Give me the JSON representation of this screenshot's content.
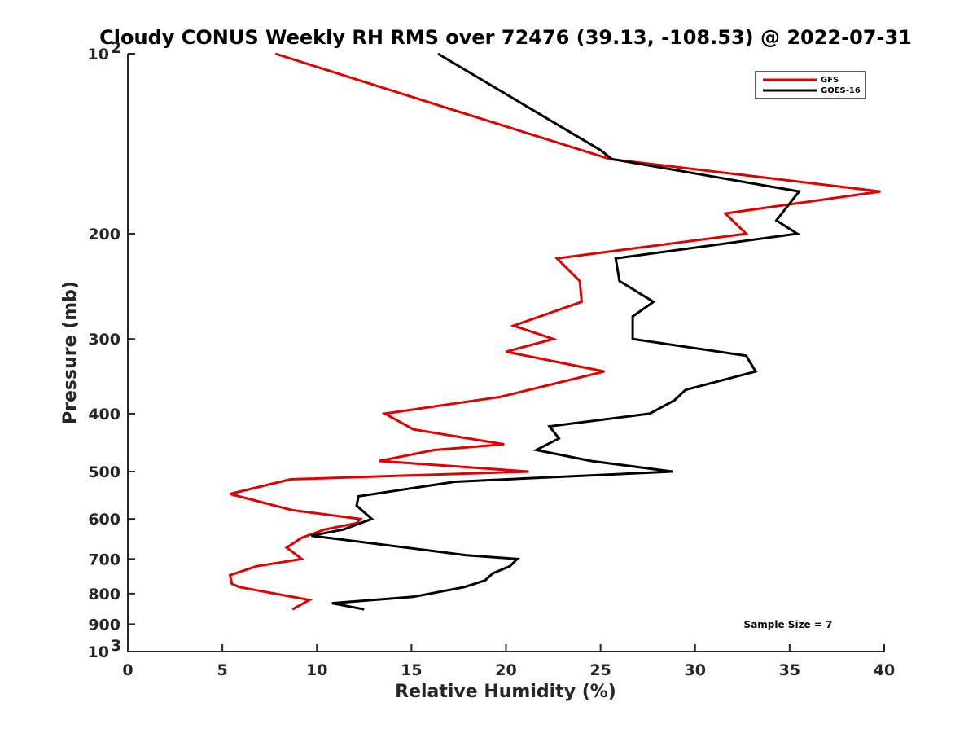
{
  "chart_data": {
    "type": "line",
    "title": "Cloudy CONUS Weekly RH RMS over 72476 (39.13, -108.53) @ 2022-07-31",
    "xlabel": "Relative Humidity (%)",
    "ylabel": "Pressure (mb)",
    "xlim": [
      0,
      40
    ],
    "ylim": [
      100,
      1000
    ],
    "y_scale": "log",
    "y_reversed": true,
    "x_ticks": [
      0,
      5,
      10,
      15,
      20,
      25,
      30,
      35,
      40
    ],
    "y_ticks": [
      {
        "value": 100,
        "label": "10",
        "sup": "2"
      },
      {
        "value": 200,
        "label": "200",
        "sup": ""
      },
      {
        "value": 300,
        "label": "300",
        "sup": ""
      },
      {
        "value": 400,
        "label": "400",
        "sup": ""
      },
      {
        "value": 500,
        "label": "500",
        "sup": ""
      },
      {
        "value": 600,
        "label": "600",
        "sup": ""
      },
      {
        "value": 700,
        "label": "700",
        "sup": ""
      },
      {
        "value": 800,
        "label": "800",
        "sup": ""
      },
      {
        "value": 900,
        "label": "900",
        "sup": ""
      },
      {
        "value": 1000,
        "label": "10",
        "sup": "3"
      }
    ],
    "grid": false,
    "legend_position": "top-right",
    "annotation": "Sample Size = 7",
    "series": [
      {
        "name": "GFS",
        "color": "#e50000",
        "points": [
          {
            "x": 7.8,
            "p": 100
          },
          {
            "x": 17.5,
            "p": 125
          },
          {
            "x": 25.5,
            "p": 150
          },
          {
            "x": 39.8,
            "p": 170
          },
          {
            "x": 31.6,
            "p": 185
          },
          {
            "x": 32.7,
            "p": 200
          },
          {
            "x": 22.7,
            "p": 220
          },
          {
            "x": 23.9,
            "p": 240
          },
          {
            "x": 24.0,
            "p": 260
          },
          {
            "x": 20.4,
            "p": 285
          },
          {
            "x": 22.5,
            "p": 300
          },
          {
            "x": 20.0,
            "p": 315
          },
          {
            "x": 25.2,
            "p": 340
          },
          {
            "x": 19.7,
            "p": 375
          },
          {
            "x": 13.6,
            "p": 400
          },
          {
            "x": 15.1,
            "p": 425
          },
          {
            "x": 19.9,
            "p": 450
          },
          {
            "x": 16.2,
            "p": 460
          },
          {
            "x": 13.3,
            "p": 480
          },
          {
            "x": 21.2,
            "p": 500
          },
          {
            "x": 8.6,
            "p": 515
          },
          {
            "x": 5.4,
            "p": 545
          },
          {
            "x": 8.7,
            "p": 580
          },
          {
            "x": 12.3,
            "p": 600
          },
          {
            "x": 12.1,
            "p": 610
          },
          {
            "x": 10.4,
            "p": 625
          },
          {
            "x": 9.2,
            "p": 645
          },
          {
            "x": 8.4,
            "p": 670
          },
          {
            "x": 9.2,
            "p": 700
          },
          {
            "x": 6.8,
            "p": 720
          },
          {
            "x": 5.4,
            "p": 745
          },
          {
            "x": 5.5,
            "p": 770
          },
          {
            "x": 5.9,
            "p": 780
          },
          {
            "x": 9.6,
            "p": 820
          },
          {
            "x": 8.7,
            "p": 850
          }
        ]
      },
      {
        "name": "GOES-16",
        "color": "#000000",
        "points": [
          {
            "x": 16.4,
            "p": 100
          },
          {
            "x": 25.0,
            "p": 145
          },
          {
            "x": 25.6,
            "p": 150
          },
          {
            "x": 35.5,
            "p": 170
          },
          {
            "x": 34.3,
            "p": 190
          },
          {
            "x": 35.4,
            "p": 200
          },
          {
            "x": 25.8,
            "p": 220
          },
          {
            "x": 26.0,
            "p": 240
          },
          {
            "x": 27.8,
            "p": 260
          },
          {
            "x": 26.7,
            "p": 275
          },
          {
            "x": 26.7,
            "p": 300
          },
          {
            "x": 32.7,
            "p": 320
          },
          {
            "x": 33.2,
            "p": 340
          },
          {
            "x": 29.5,
            "p": 365
          },
          {
            "x": 28.9,
            "p": 380
          },
          {
            "x": 27.6,
            "p": 400
          },
          {
            "x": 22.3,
            "p": 420
          },
          {
            "x": 22.8,
            "p": 440
          },
          {
            "x": 21.6,
            "p": 460
          },
          {
            "x": 24.5,
            "p": 480
          },
          {
            "x": 28.8,
            "p": 500
          },
          {
            "x": 17.3,
            "p": 520
          },
          {
            "x": 12.2,
            "p": 550
          },
          {
            "x": 12.1,
            "p": 570
          },
          {
            "x": 12.9,
            "p": 600
          },
          {
            "x": 11.4,
            "p": 625
          },
          {
            "x": 9.7,
            "p": 640
          },
          {
            "x": 17.9,
            "p": 690
          },
          {
            "x": 20.6,
            "p": 700
          },
          {
            "x": 20.2,
            "p": 720
          },
          {
            "x": 19.3,
            "p": 740
          },
          {
            "x": 18.9,
            "p": 760
          },
          {
            "x": 17.8,
            "p": 780
          },
          {
            "x": 15.1,
            "p": 810
          },
          {
            "x": 10.8,
            "p": 830
          },
          {
            "x": 12.5,
            "p": 850
          }
        ]
      }
    ]
  }
}
